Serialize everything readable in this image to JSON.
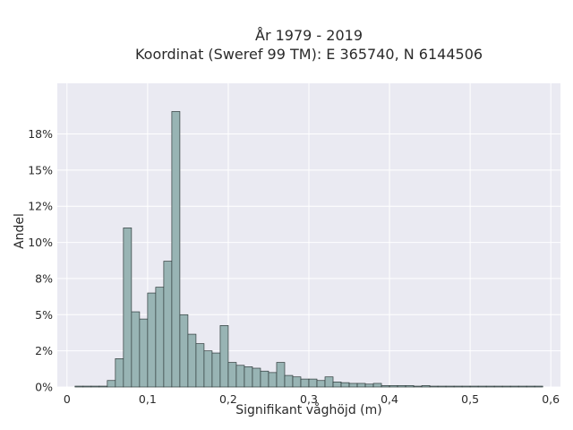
{
  "chart_data": {
    "type": "bar",
    "title": [
      "År 1979 - 2019",
      "Koordinat (Sweref 99 TM): E 365740, N 6144506"
    ],
    "xlabel": "Signifikant våghöjd (m)",
    "ylabel": "Andel",
    "xlim": [
      -0.012,
      0.612
    ],
    "ylim": [
      0,
      0.21
    ],
    "x_ticks": [
      {
        "value": 0,
        "label": "0"
      },
      {
        "value": 0.1,
        "label": "0,1"
      },
      {
        "value": 0.2,
        "label": "0,2"
      },
      {
        "value": 0.3,
        "label": "0,3"
      },
      {
        "value": 0.4,
        "label": "0,4"
      },
      {
        "value": 0.5,
        "label": "0,5"
      },
      {
        "value": 0.6,
        "label": "0,6"
      }
    ],
    "y_ticks": [
      {
        "value": 0,
        "label": "0%"
      },
      {
        "value": 0.025,
        "label": "2%"
      },
      {
        "value": 0.05,
        "label": "5%"
      },
      {
        "value": 0.075,
        "label": "8%"
      },
      {
        "value": 0.1,
        "label": "10%"
      },
      {
        "value": 0.125,
        "label": "12%"
      },
      {
        "value": 0.15,
        "label": "15%"
      },
      {
        "value": 0.175,
        "label": "18%"
      }
    ],
    "grid": true,
    "bin_start": 0.01,
    "bin_width": 0.01,
    "values": [
      0.0006,
      0.0006,
      0.0006,
      0.0006,
      0.0045,
      0.0196,
      0.11,
      0.052,
      0.047,
      0.065,
      0.069,
      0.087,
      0.1905,
      0.05,
      0.0365,
      0.03,
      0.025,
      0.0235,
      0.0425,
      0.017,
      0.015,
      0.014,
      0.013,
      0.011,
      0.01,
      0.017,
      0.008,
      0.007,
      0.0055,
      0.0055,
      0.0045,
      0.007,
      0.0035,
      0.003,
      0.0025,
      0.0025,
      0.002,
      0.0025,
      0.001,
      0.001,
      0.001,
      0.001,
      0.0006,
      0.001,
      0.0006,
      0.0006,
      0.0006,
      0.0006,
      0.0006,
      0.0006,
      0.0006,
      0.0006,
      0.0006,
      0.0006,
      0.0006,
      0.0006,
      0.0006,
      0.0006
    ],
    "colors": {
      "bar_fill": "#98b4b4",
      "bar_stroke": "#2f3b3b",
      "plot_bg": "#eaeaf2",
      "grid": "#ffffff",
      "text": "#2a2a2a"
    }
  }
}
